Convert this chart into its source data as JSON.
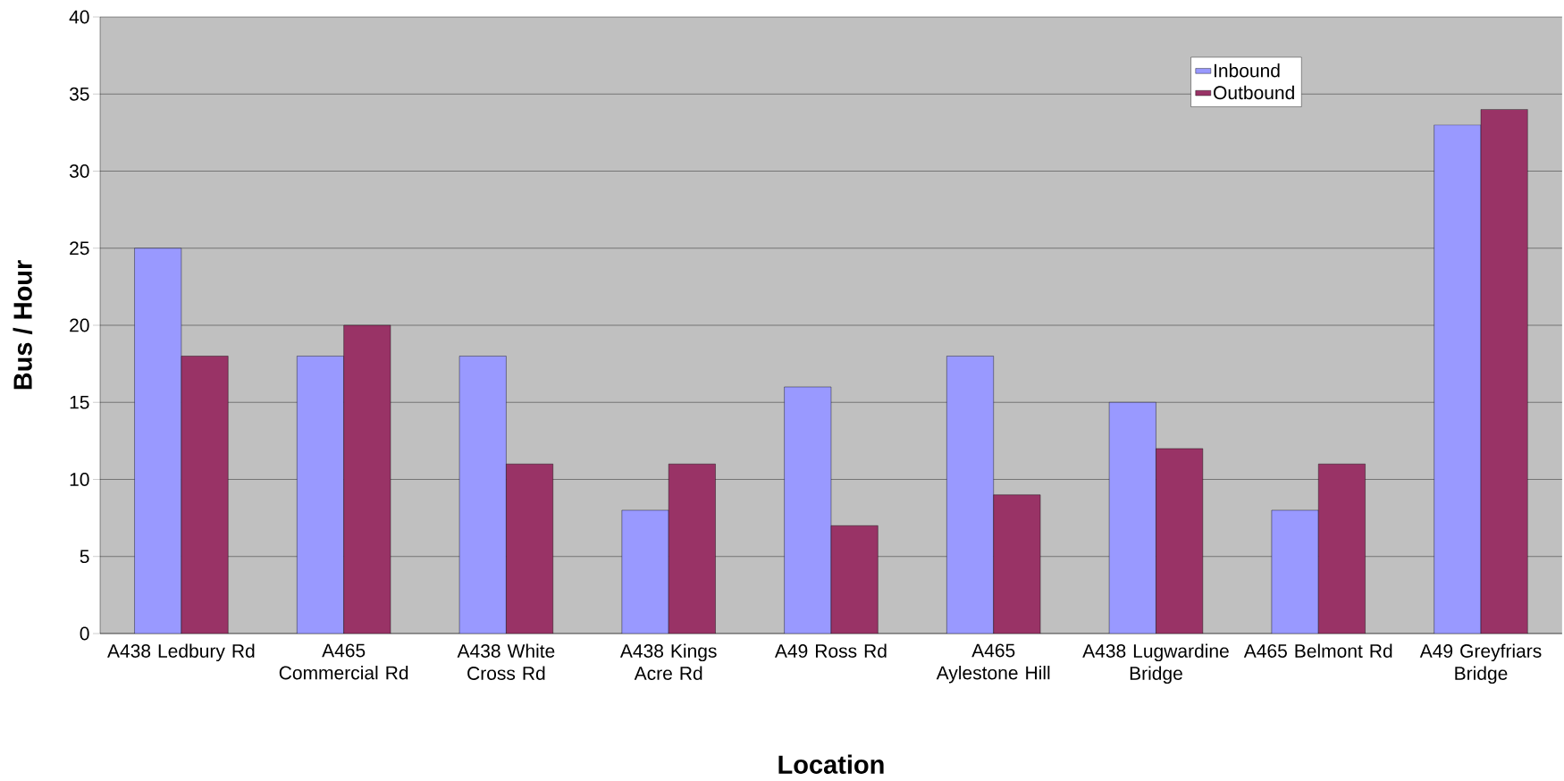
{
  "chart_data": {
    "type": "bar",
    "xlabel": "Location",
    "ylabel": "Bus / Hour",
    "categories": [
      "A438 Ledbury Rd",
      "A465 Commercial Rd",
      "A438 White Cross Rd",
      "A438 Kings Acre Rd",
      "A49 Ross Rd",
      "A465 Aylestone Hill",
      "A438 Lugwardine Bridge",
      "A465 Belmont Rd",
      "A49 Greyfriars Bridge"
    ],
    "series": [
      {
        "name": "Inbound",
        "color": "#9999ff",
        "values": [
          25,
          18,
          18,
          8,
          16,
          18,
          15,
          8,
          33
        ]
      },
      {
        "name": "Outbound",
        "color": "#993366",
        "values": [
          18,
          20,
          11,
          11,
          7,
          9,
          12,
          11,
          34
        ]
      }
    ],
    "ylim": [
      0,
      40
    ],
    "yticks": [
      0,
      5,
      10,
      15,
      20,
      25,
      30,
      35,
      40
    ],
    "grid": "y",
    "legend": "top right"
  }
}
